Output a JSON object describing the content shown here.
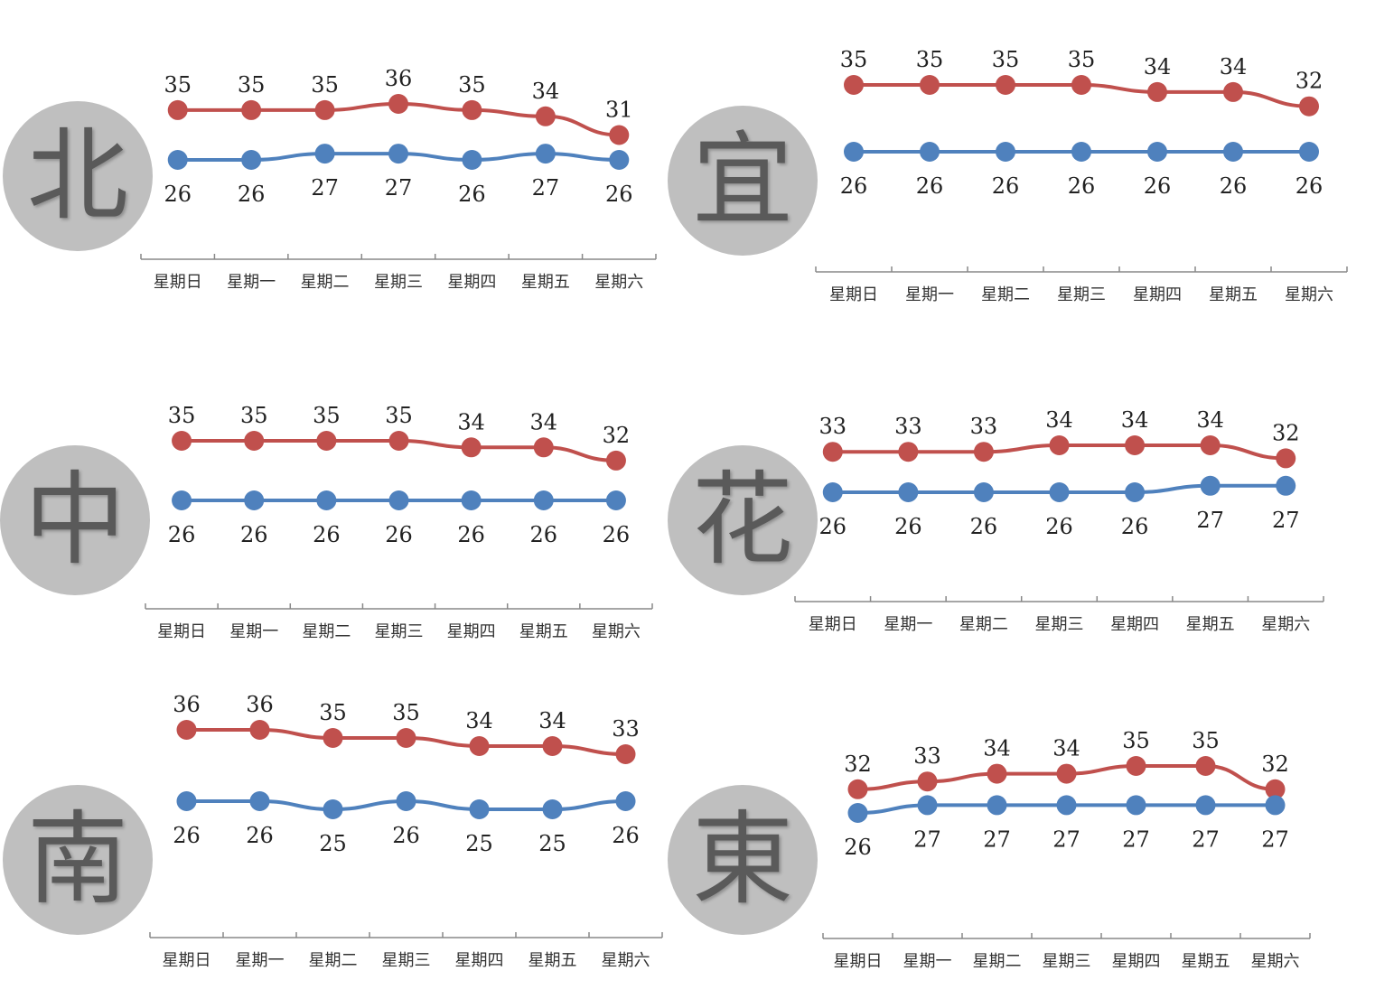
{
  "series_colors": {
    "high": "#c0504d",
    "low": "#4f81bd"
  },
  "chart_data": [
    {
      "type": "line",
      "region": "北",
      "categories": [
        "星期日",
        "星期一",
        "星期二",
        "星期三",
        "星期四",
        "星期五",
        "星期六"
      ],
      "series": [
        {
          "values": [
            35,
            35,
            35,
            36,
            35,
            34,
            31
          ]
        },
        {
          "values": [
            26,
            26,
            27,
            27,
            26,
            27,
            26
          ]
        }
      ]
    },
    {
      "type": "line",
      "region": "宜",
      "categories": [
        "星期日",
        "星期一",
        "星期二",
        "星期三",
        "星期四",
        "星期五",
        "星期六"
      ],
      "series": [
        {
          "values": [
            35,
            35,
            35,
            35,
            34,
            34,
            32
          ]
        },
        {
          "values": [
            26,
            26,
            26,
            26,
            26,
            26,
            26
          ]
        }
      ]
    },
    {
      "type": "line",
      "region": "中",
      "categories": [
        "星期日",
        "星期一",
        "星期二",
        "星期三",
        "星期四",
        "星期五",
        "星期六"
      ],
      "series": [
        {
          "values": [
            35,
            35,
            35,
            35,
            34,
            34,
            32
          ]
        },
        {
          "values": [
            26,
            26,
            26,
            26,
            26,
            26,
            26
          ]
        }
      ]
    },
    {
      "type": "line",
      "region": "花",
      "categories": [
        "星期日",
        "星期一",
        "星期二",
        "星期三",
        "星期四",
        "星期五",
        "星期六"
      ],
      "series": [
        {
          "values": [
            33,
            33,
            33,
            34,
            34,
            34,
            32
          ]
        },
        {
          "values": [
            26,
            26,
            26,
            26,
            26,
            27,
            27
          ]
        }
      ]
    },
    {
      "type": "line",
      "region": "南",
      "categories": [
        "星期日",
        "星期一",
        "星期二",
        "星期三",
        "星期四",
        "星期五",
        "星期六"
      ],
      "series": [
        {
          "values": [
            36,
            36,
            35,
            35,
            34,
            34,
            33
          ]
        },
        {
          "values": [
            26,
            26,
            25,
            26,
            25,
            25,
            26
          ]
        }
      ]
    },
    {
      "type": "line",
      "region": "東",
      "categories": [
        "星期日",
        "星期一",
        "星期二",
        "星期三",
        "星期四",
        "星期五",
        "星期六"
      ],
      "series": [
        {
          "values": [
            32,
            33,
            34,
            34,
            35,
            35,
            32
          ]
        },
        {
          "values": [
            26,
            27,
            27,
            27,
            27,
            27,
            27
          ]
        }
      ]
    }
  ]
}
